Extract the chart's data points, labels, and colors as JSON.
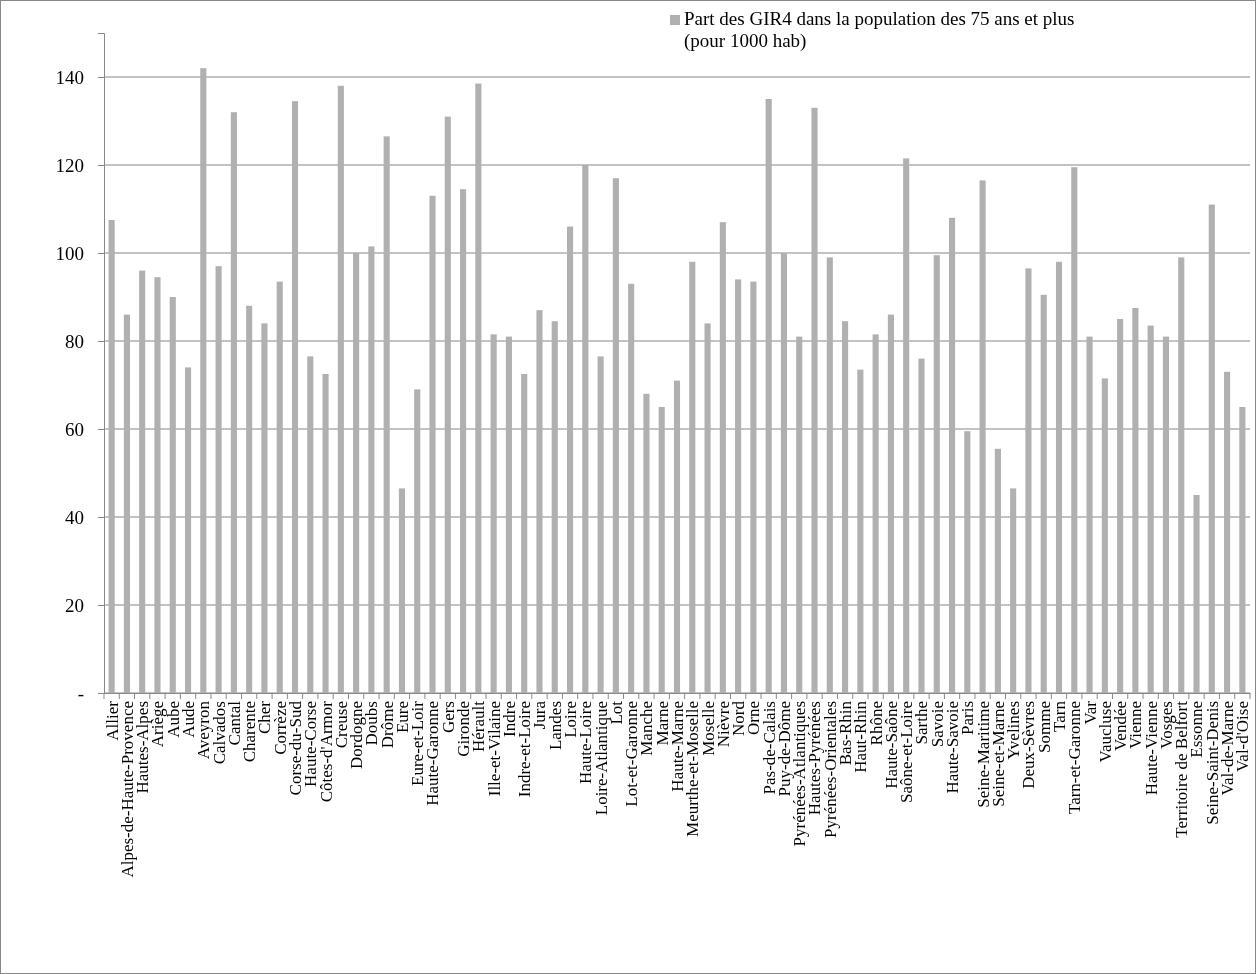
{
  "chart_data": {
    "type": "bar",
    "categories": [
      "Allier",
      "Alpes-de-Haute-Provence",
      "Hautes-Alpes",
      "Ariège",
      "Aube",
      "Aude",
      "Aveyron",
      "Calvados",
      "Cantal",
      "Charente",
      "Cher",
      "Corrèze",
      "Corse-du-Sud",
      "Haute-Corse",
      "Côtes-d'Armor",
      "Creuse",
      "Dordogne",
      "Doubs",
      "Drôme",
      "Eure",
      "Eure-et-Loir",
      "Haute-Garonne",
      "Gers",
      "Gironde",
      "Hérault",
      "Ille-et-Vilaine",
      "Indre",
      "Indre-et-Loire",
      "Jura",
      "Landes",
      "Loire",
      "Haute-Loire",
      "Loire-Atlantique",
      "Lot",
      "Lot-et-Garonne",
      "Manche",
      "Marne",
      "Haute-Marne",
      "Meurthe-et-Moselle",
      "Moselle",
      "Nièvre",
      "Nord",
      "Orne",
      "Pas-de-Calais",
      "Puy-de-Dôme",
      "Pyrénées-Atlantiques",
      "Hautes-Pyrénées",
      "Pyrénées-Orientales",
      "Bas-Rhin",
      "Haut-Rhin",
      "Rhône",
      "Haute-Saône",
      "Saône-et-Loire",
      "Sarthe",
      "Savoie",
      "Haute-Savoie",
      "Paris",
      "Seine-Maritime",
      "Seine-et-Marne",
      "Yvelines",
      "Deux-Sèvres",
      "Somme",
      "Tarn",
      "Tarn-et-Garonne",
      "Var",
      "Vaucluse",
      "Vendée",
      "Vienne",
      "Haute-Vienne",
      "Vosges",
      "Territoire de Belfort",
      "Essonne",
      "Seine-Saint-Denis",
      "Val-de-Marne",
      "Val-d'Oise"
    ],
    "series": [
      {
        "name": "Part des GIR4 dans la population des 75 ans et plus (pour 1000 hab)",
        "color": "#b0b0b0",
        "values": [
          107.5,
          86,
          96,
          94.5,
          90,
          74,
          142,
          97,
          132,
          88,
          84,
          93.5,
          134.5,
          76.5,
          72.5,
          138,
          100,
          101.5,
          126.5,
          46.5,
          69,
          113,
          131,
          114.5,
          138.5,
          81.5,
          81,
          72.5,
          87,
          84.5,
          106,
          120,
          76.5,
          117,
          93,
          68,
          65,
          71,
          98,
          84,
          107,
          94,
          93.5,
          135,
          100,
          81,
          133,
          99,
          84.5,
          73.5,
          81.5,
          86,
          121.5,
          76,
          99.5,
          108,
          59.5,
          116.5,
          55.5,
          46.5,
          96.5,
          90.5,
          98,
          119.5,
          81,
          71.5,
          85,
          87.5,
          83.5,
          81,
          99,
          45,
          111,
          73,
          65
        ]
      }
    ],
    "ylim": [
      0,
      150
    ],
    "yticks": [
      {
        "value": 0,
        "label": "-"
      },
      20,
      40,
      60,
      80,
      100,
      120,
      140
    ],
    "grid": "y",
    "legend": "top right"
  }
}
